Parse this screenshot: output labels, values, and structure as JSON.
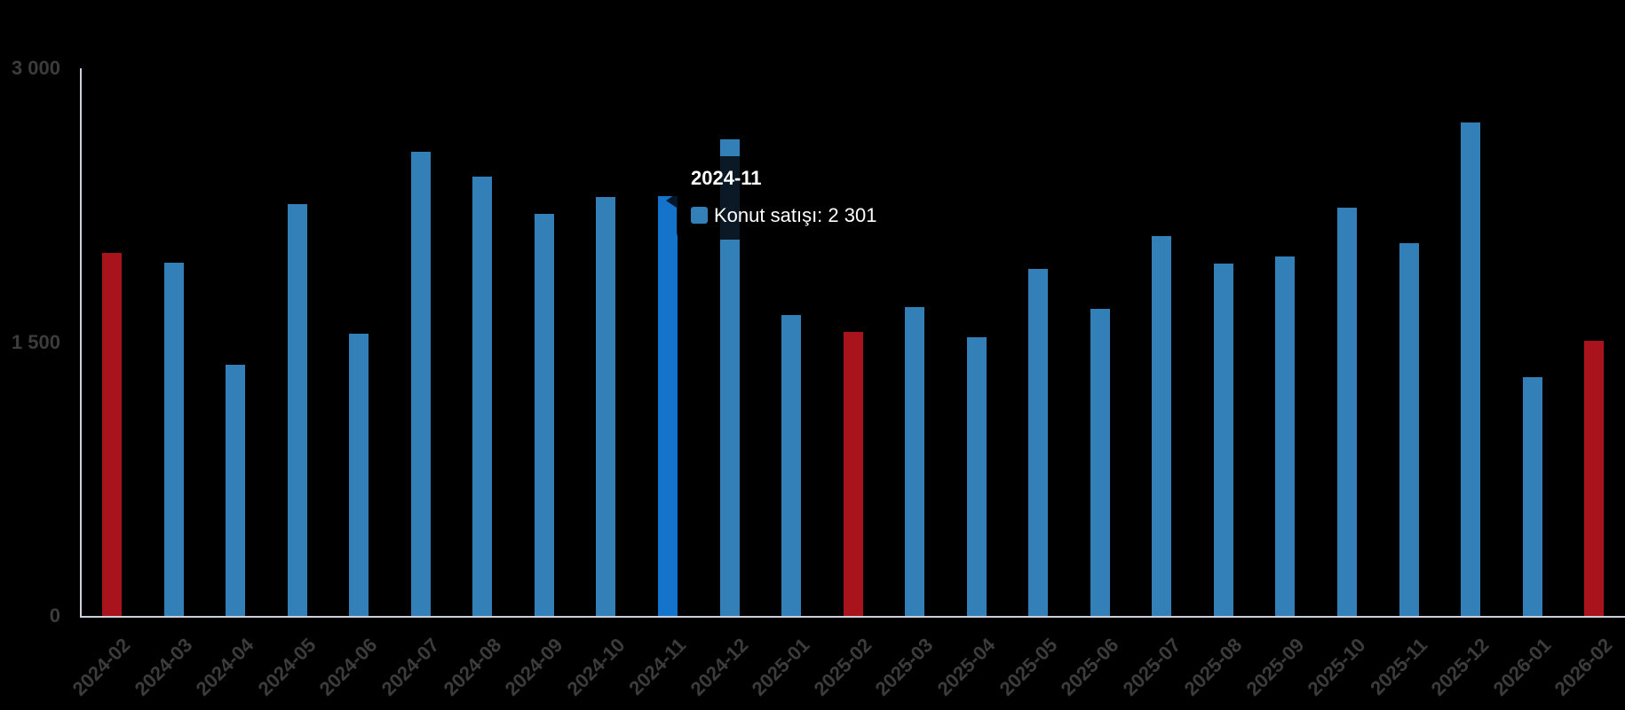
{
  "colors": {
    "bar_blue": "#337fb8",
    "bar_red": "#a9141c",
    "bar_hover_blue": "#1474cc",
    "axis_line": "#ccd1dc",
    "axis_text": "#3c3c3c",
    "tooltip_bg": "rgba(0,0,0,0.8)",
    "tooltip_text": "#ffffff",
    "background": "#000000"
  },
  "tooltip": {
    "title": "2024-11",
    "series": "Konut satışı",
    "value": "2 301",
    "body": "Konut satışı: 2 301"
  },
  "chart_data": {
    "type": "bar",
    "title": "",
    "xlabel": "",
    "ylabel": "",
    "categories": [
      "2024-02",
      "2024-03",
      "2024-04",
      "2024-05",
      "2024-06",
      "2024-07",
      "2024-08",
      "2024-09",
      "2024-10",
      "2024-11",
      "2024-12",
      "2025-01",
      "2025-02",
      "2025-03",
      "2025-04",
      "2025-05",
      "2025-06",
      "2025-07",
      "2025-08",
      "2025-09",
      "2025-10",
      "2025-11",
      "2025-12",
      "2026-01",
      "2026-02"
    ],
    "series": [
      {
        "name": "Konut satışı",
        "values": [
          1990,
          1937,
          1375,
          2256,
          1545,
          2541,
          2405,
          2204,
          2297,
          2301,
          2612,
          1648,
          1554,
          1691,
          1529,
          1902,
          1680,
          2082,
          1931,
          1967,
          2236,
          2042,
          2702,
          1307,
          1507
        ]
      }
    ],
    "ylim": [
      0,
      3000
    ],
    "y_ticks": [
      {
        "label": "0",
        "value": 0
      },
      {
        "label": "1 500",
        "value": 1500
      },
      {
        "label": "3 000",
        "value": 3000
      }
    ],
    "x_label_rotation_deg": -45,
    "grid": false,
    "legend_position": "none",
    "highlight": {
      "hover_index": 9,
      "red_indices": [
        0,
        12,
        24
      ]
    }
  }
}
